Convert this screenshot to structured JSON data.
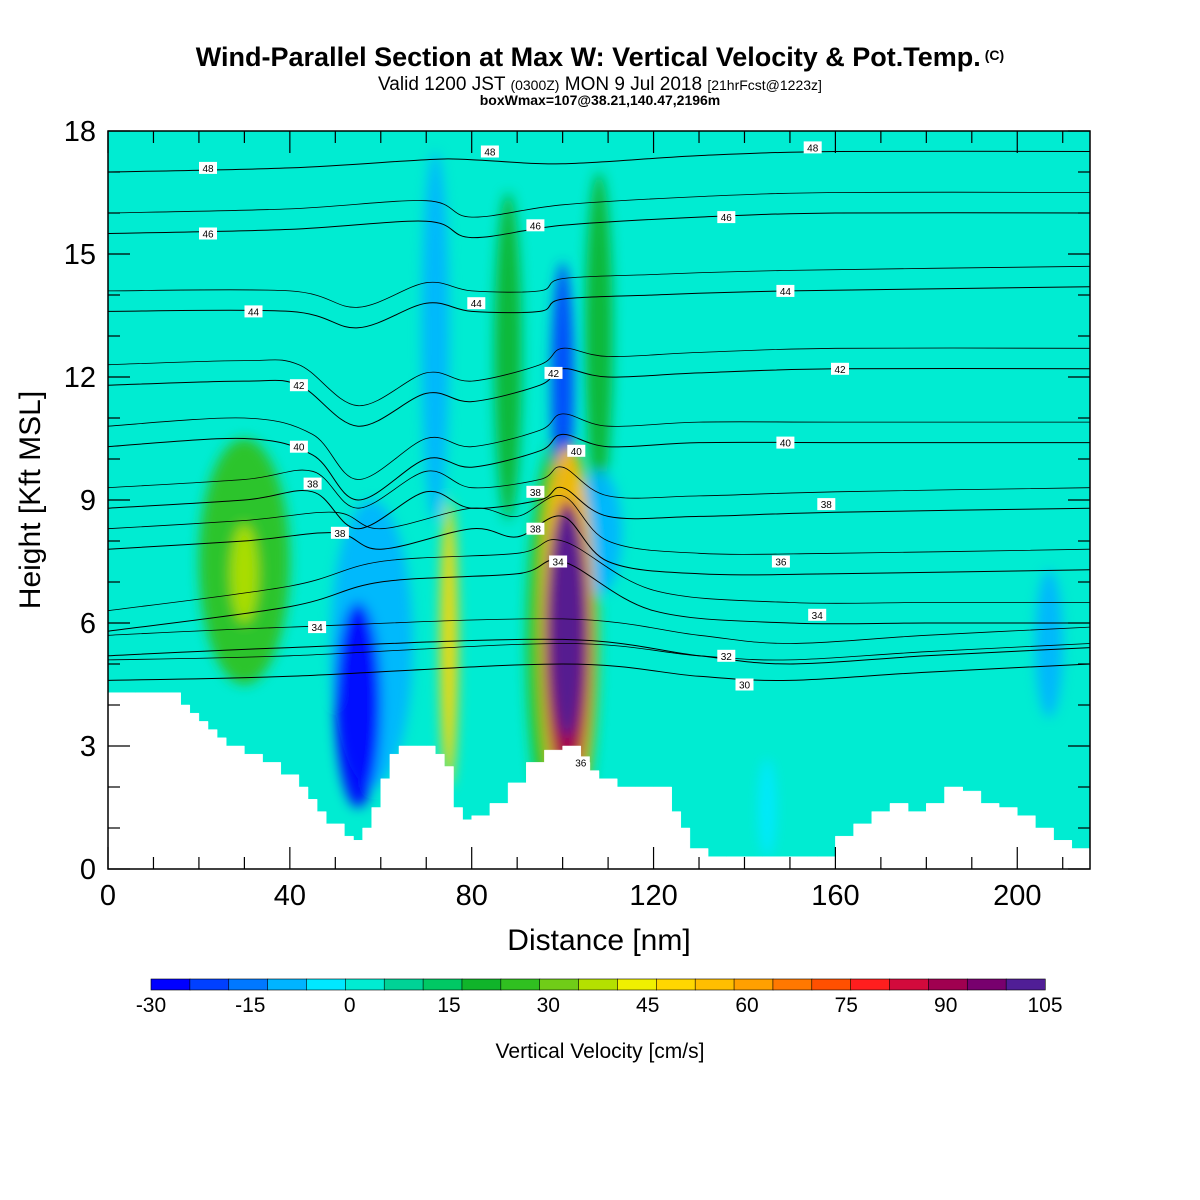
{
  "header": {
    "title": "Wind-Parallel Section at Max W: Vertical Velocity & Pot.Temp.",
    "title_tag": "(C)",
    "valid_prefix": "Valid 1200 JST",
    "valid_utc": "(0300Z)",
    "valid_date": "MON 9 Jul 2018",
    "forecast_info": "[21hrFcst@1223z]",
    "box_info": "boxWmax=107@38.21,140.47,2196m"
  },
  "chart_data": {
    "type": "heatmap",
    "xlabel": "Distance [nm]",
    "ylabel": "Height [Kft MSL]",
    "xlim": [
      0,
      216
    ],
    "ylim": [
      0,
      18
    ],
    "x_ticks": [
      0,
      40,
      80,
      120,
      160,
      200
    ],
    "y_ticks": [
      0,
      3,
      6,
      9,
      12,
      15,
      18
    ],
    "grid": false,
    "colorbar": {
      "label": "Vertical Velocity [cm/s]",
      "min": -30,
      "max": 105,
      "step": 5,
      "tick_values": [
        -30,
        -15,
        0,
        15,
        30,
        45,
        60,
        75,
        90,
        105
      ],
      "colors": [
        "#0000ff",
        "#0040ff",
        "#0078ff",
        "#00b4ff",
        "#00e8ff",
        "#00ecd2",
        "#00d296",
        "#00c864",
        "#10b42a",
        "#30c020",
        "#70cc18",
        "#b4e000",
        "#f0f000",
        "#ffd700",
        "#ffbe00",
        "#ffa000",
        "#ff7800",
        "#ff5000",
        "#ff1e1e",
        "#d20a3c",
        "#a00050",
        "#78006e",
        "#501e96"
      ],
      "background_color": "#00ecd2"
    },
    "terrain_height_profile": {
      "x": [
        0,
        6,
        12,
        16,
        18,
        20,
        22,
        24,
        26,
        30,
        34,
        38,
        42,
        44,
        46,
        48,
        52,
        54,
        56,
        58,
        60,
        62,
        64,
        66,
        68,
        70,
        72,
        74,
        76,
        78,
        80,
        84,
        88,
        92,
        96,
        100,
        104,
        106,
        108,
        112,
        116,
        120,
        124,
        126,
        128,
        132,
        136,
        140,
        144,
        148,
        152,
        156,
        160,
        164,
        168,
        172,
        176,
        180,
        184,
        188,
        192,
        196,
        200,
        204,
        208,
        212,
        216
      ],
      "height": [
        4.3,
        4.3,
        4.3,
        4.0,
        3.8,
        3.6,
        3.4,
        3.2,
        3.0,
        2.8,
        2.6,
        2.3,
        2.0,
        1.7,
        1.4,
        1.1,
        0.8,
        0.7,
        1.0,
        1.5,
        2.2,
        2.8,
        3.0,
        3.0,
        3.0,
        3.0,
        2.8,
        2.5,
        1.5,
        1.2,
        1.3,
        1.6,
        2.1,
        2.6,
        2.9,
        3.0,
        2.6,
        2.4,
        2.2,
        2.0,
        2.0,
        2.0,
        1.4,
        1.0,
        0.5,
        0.3,
        0.3,
        0.3,
        0.3,
        0.3,
        0.3,
        0.3,
        0.8,
        1.1,
        1.4,
        1.6,
        1.4,
        1.6,
        2.0,
        1.9,
        1.6,
        1.5,
        1.3,
        1.0,
        0.7,
        0.5,
        0.3
      ]
    },
    "theta_contours": [
      {
        "level": 30,
        "label": "30",
        "x": [
          0,
          40,
          100,
          130,
          150,
          180,
          216
        ],
        "y": [
          4.6,
          4.7,
          5.0,
          4.7,
          4.6,
          4.8,
          5.0
        ]
      },
      {
        "level": 32,
        "label": "32",
        "x": [
          0,
          40,
          100,
          130,
          150,
          180,
          216
        ],
        "y": [
          5.2,
          5.4,
          5.6,
          5.2,
          5.0,
          5.2,
          5.4
        ]
      },
      {
        "level": 34,
        "label": "34",
        "x": [
          0,
          40,
          60,
          90,
          100,
          120,
          150,
          180,
          216
        ],
        "y": [
          5.8,
          6.4,
          7.0,
          7.2,
          7.5,
          6.3,
          6.0,
          6.0,
          6.0
        ]
      },
      {
        "level": 36,
        "label": "36",
        "x": [
          0,
          30,
          50,
          60,
          80,
          90,
          100,
          110,
          130,
          160,
          216
        ],
        "y": [
          7.8,
          8.0,
          8.2,
          7.8,
          8.3,
          8.1,
          8.6,
          7.5,
          7.2,
          7.2,
          7.3
        ]
      },
      {
        "level": 38,
        "label": "38",
        "x": [
          0,
          30,
          45,
          55,
          70,
          80,
          95,
          100,
          110,
          130,
          160,
          216
        ],
        "y": [
          8.8,
          9.0,
          9.2,
          8.3,
          9.2,
          8.8,
          9.0,
          9.3,
          8.6,
          8.6,
          8.7,
          8.8
        ]
      },
      {
        "level": 40,
        "label": "40",
        "x": [
          0,
          30,
          45,
          55,
          70,
          80,
          95,
          100,
          110,
          130,
          160,
          216
        ],
        "y": [
          10.3,
          10.5,
          10.1,
          9.0,
          10.0,
          9.8,
          10.2,
          10.6,
          10.3,
          10.4,
          10.4,
          10.4
        ]
      },
      {
        "level": 42,
        "label": "42",
        "x": [
          0,
          30,
          42,
          55,
          70,
          80,
          95,
          100,
          110,
          130,
          160,
          216
        ],
        "y": [
          11.8,
          11.9,
          11.8,
          10.8,
          11.6,
          11.4,
          11.8,
          12.2,
          12.0,
          12.1,
          12.2,
          12.2
        ]
      },
      {
        "level": 44,
        "label": "44",
        "x": [
          0,
          40,
          55,
          70,
          80,
          95,
          100,
          120,
          150,
          216
        ],
        "y": [
          13.6,
          13.6,
          13.2,
          13.8,
          13.6,
          13.6,
          13.9,
          14.0,
          14.1,
          14.2
        ]
      },
      {
        "level": 46,
        "label": "46",
        "x": [
          0,
          40,
          70,
          80,
          100,
          130,
          160,
          216
        ],
        "y": [
          15.5,
          15.6,
          15.8,
          15.4,
          15.7,
          15.9,
          16.0,
          16.0
        ]
      },
      {
        "level": 48,
        "label": "48",
        "x": [
          0,
          40,
          70,
          80,
          100,
          130,
          160,
          216
        ],
        "y": [
          17.0,
          17.1,
          17.3,
          17.3,
          17.2,
          17.4,
          17.5,
          17.5
        ]
      }
    ],
    "theta_label_positions": [
      {
        "label": "30",
        "x": 140,
        "y": 4.5
      },
      {
        "label": "32",
        "x": 136,
        "y": 5.2
      },
      {
        "label": "34",
        "x": 46,
        "y": 5.9
      },
      {
        "label": "34",
        "x": 156,
        "y": 6.2
      },
      {
        "label": "34",
        "x": 99,
        "y": 7.5
      },
      {
        "label": "36",
        "x": 148,
        "y": 7.5
      },
      {
        "label": "36",
        "x": 104,
        "y": 2.6
      },
      {
        "label": "38",
        "x": 51,
        "y": 8.2
      },
      {
        "label": "38",
        "x": 94,
        "y": 8.3
      },
      {
        "label": "38",
        "x": 94,
        "y": 9.2
      },
      {
        "label": "38",
        "x": 45,
        "y": 9.4
      },
      {
        "label": "38",
        "x": 158,
        "y": 8.9
      },
      {
        "label": "40",
        "x": 42,
        "y": 10.3
      },
      {
        "label": "40",
        "x": 103,
        "y": 10.2
      },
      {
        "label": "40",
        "x": 149,
        "y": 10.4
      },
      {
        "label": "42",
        "x": 42,
        "y": 11.8
      },
      {
        "label": "42",
        "x": 98,
        "y": 12.1
      },
      {
        "label": "42",
        "x": 161,
        "y": 12.2
      },
      {
        "label": "44",
        "x": 32,
        "y": 13.6
      },
      {
        "label": "44",
        "x": 81,
        "y": 13.8
      },
      {
        "label": "44",
        "x": 149,
        "y": 14.1
      },
      {
        "label": "46",
        "x": 22,
        "y": 15.5
      },
      {
        "label": "46",
        "x": 94,
        "y": 15.7
      },
      {
        "label": "46",
        "x": 136,
        "y": 15.9
      },
      {
        "label": "48",
        "x": 22,
        "y": 17.1
      },
      {
        "label": "48",
        "x": 84,
        "y": 17.5
      },
      {
        "label": "48",
        "x": 155,
        "y": 17.6
      }
    ],
    "velocity_features": [
      {
        "kind": "updraft",
        "x": 101,
        "y": 6.0,
        "rx": 4,
        "ry": 2.8,
        "value": 105
      },
      {
        "kind": "updraft",
        "x": 101,
        "y": 5.5,
        "rx": 5,
        "ry": 3.5,
        "value": 70
      },
      {
        "kind": "updraft",
        "x": 101,
        "y": 5.8,
        "rx": 6,
        "ry": 4.5,
        "value": 40
      },
      {
        "kind": "updraft",
        "x": 100,
        "y": 5.5,
        "rx": 8,
        "ry": 5.2,
        "value": 15
      },
      {
        "kind": "updraft",
        "x": 75,
        "y": 5.5,
        "rx": 2,
        "ry": 3.5,
        "value": 35
      },
      {
        "kind": "updraft",
        "x": 30,
        "y": 7.5,
        "rx": 10,
        "ry": 3,
        "value": 15
      },
      {
        "kind": "updraft",
        "x": 30,
        "y": 7.2,
        "rx": 3,
        "ry": 1.2,
        "value": 25
      },
      {
        "kind": "updraft",
        "x": 88,
        "y": 12.5,
        "rx": 3,
        "ry": 4,
        "value": 10
      },
      {
        "kind": "updraft",
        "x": 108,
        "y": 13.0,
        "rx": 3,
        "ry": 4,
        "value": 10
      },
      {
        "kind": "downdraft",
        "x": 55,
        "y": 4.0,
        "rx": 5,
        "ry": 2.5,
        "value": -30
      },
      {
        "kind": "downdraft",
        "x": 58,
        "y": 5.5,
        "rx": 9,
        "ry": 3.5,
        "value": -15
      },
      {
        "kind": "downdraft",
        "x": 72,
        "y": 13.0,
        "rx": 3,
        "ry": 4.5,
        "value": -15
      },
      {
        "kind": "downdraft",
        "x": 100,
        "y": 11.8,
        "rx": 2.5,
        "ry": 3,
        "value": -25
      },
      {
        "kind": "downdraft",
        "x": 108,
        "y": 8.2,
        "rx": 5,
        "ry": 1.5,
        "value": -15
      },
      {
        "kind": "downdraft",
        "x": 207,
        "y": 5.5,
        "rx": 3,
        "ry": 1.8,
        "value": -15
      },
      {
        "kind": "downdraft",
        "x": 145,
        "y": 1.5,
        "rx": 2,
        "ry": 1.2,
        "value": -10
      }
    ]
  }
}
